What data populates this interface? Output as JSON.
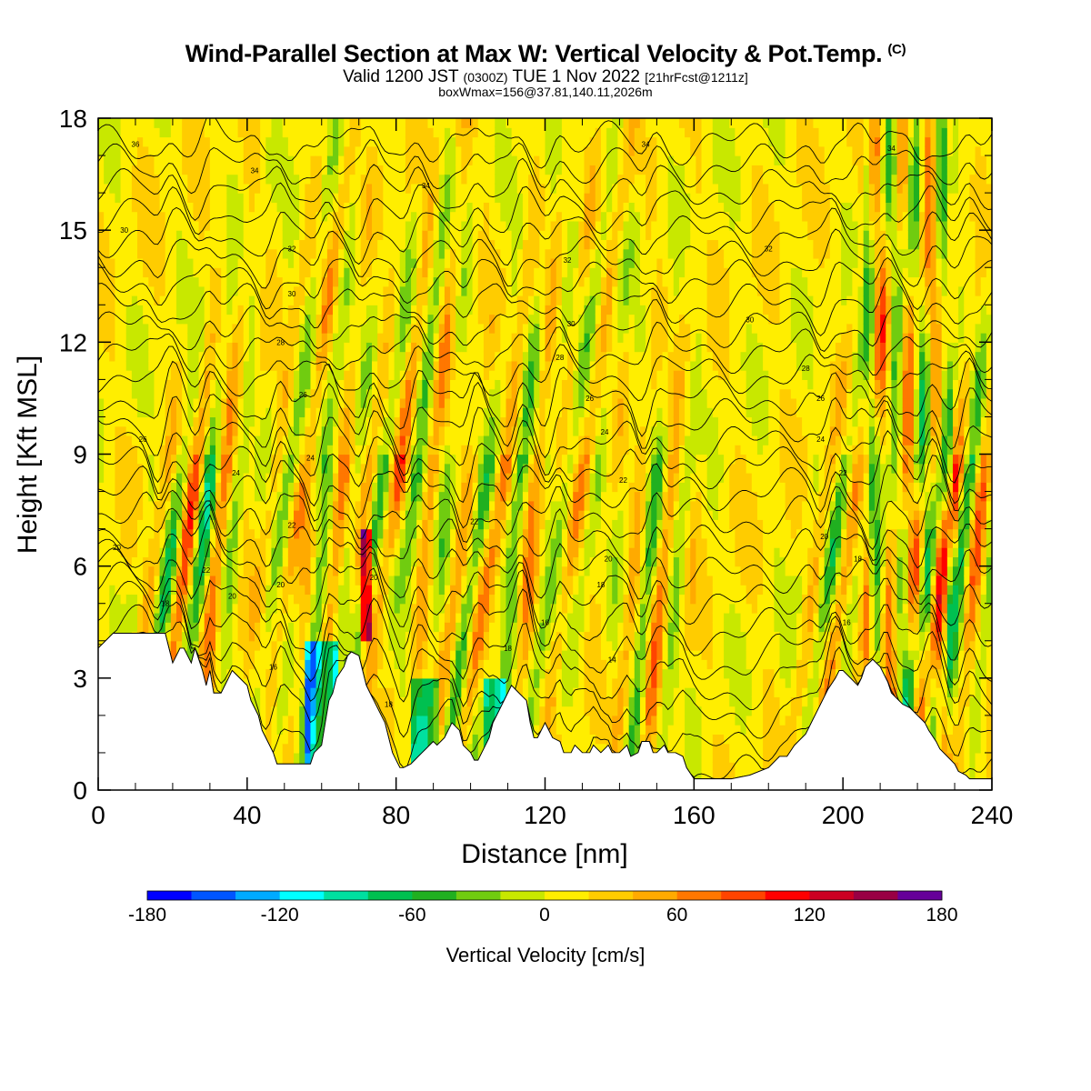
{
  "header": {
    "title": "Wind-Parallel Section at Max W: Vertical Velocity & Pot.Temp.",
    "copyright": "(C)",
    "subtitle_a": "Valid 1200 JST",
    "subtitle_b": "(0300Z)",
    "subtitle_c": "TUE 1 Nov 2022",
    "subtitle_d": "[21hrFcst@1211z]",
    "info": "boxWmax=156@37.81,140.11,2026m"
  },
  "chart_data": {
    "type": "heatmap",
    "xlabel": "Distance [nm]",
    "ylabel": "Height [Kft MSL]",
    "xlim": [
      0,
      240
    ],
    "ylim": [
      0,
      18
    ],
    "x_ticks": [
      0,
      40,
      80,
      120,
      160,
      200,
      240
    ],
    "y_ticks": [
      0,
      3,
      6,
      9,
      12,
      15,
      18
    ],
    "colorbar": {
      "label": "Vertical Velocity [cm/s]",
      "range": [
        -180,
        180
      ],
      "ticks": [
        -180,
        -120,
        -60,
        0,
        60,
        120,
        180
      ],
      "colors": [
        "#0000ff",
        "#0055ff",
        "#00aaff",
        "#00ffff",
        "#00e0a0",
        "#00c050",
        "#20b020",
        "#70cc10",
        "#c8e800",
        "#ffee00",
        "#ffcc00",
        "#ffaa00",
        "#ff7700",
        "#ff4400",
        "#ff0000",
        "#cc0022",
        "#990044",
        "#660099"
      ]
    },
    "terrain_profile": {
      "x": [
        0,
        2,
        4,
        8,
        10,
        18,
        19,
        20,
        22,
        23,
        25,
        26,
        28,
        29,
        30,
        31,
        33,
        35,
        36,
        38,
        40,
        41,
        43,
        44,
        46,
        47,
        48,
        50,
        52,
        53,
        55,
        57,
        58,
        60,
        61,
        62,
        63,
        64,
        66,
        67,
        68,
        70,
        71,
        72,
        73,
        74,
        75,
        77,
        78,
        79,
        80,
        81,
        82,
        84,
        85,
        86,
        87,
        88,
        90,
        91,
        93,
        94,
        95,
        97,
        98,
        100,
        101,
        102,
        103,
        105,
        106,
        107,
        108,
        110,
        111,
        113,
        115,
        116,
        117,
        118,
        120,
        121,
        122,
        124,
        125,
        127,
        128,
        130,
        132,
        133,
        135,
        137,
        138,
        140,
        142,
        143,
        145,
        146,
        148,
        149,
        150,
        152,
        153,
        155,
        157,
        158,
        160,
        162,
        165,
        167,
        170,
        175,
        180,
        183,
        185,
        187,
        190,
        192,
        194,
        196,
        198,
        199,
        200,
        202,
        204,
        205,
        206,
        208,
        210,
        212,
        213,
        215,
        216,
        218,
        220,
        222,
        223,
        225,
        226,
        228,
        230,
        231,
        233,
        234,
        236,
        238,
        240
      ],
      "h": [
        3.8,
        4.0,
        4.2,
        4.2,
        4.2,
        4.2,
        3.8,
        3.4,
        3.8,
        3.8,
        3.4,
        3.8,
        3.2,
        2.8,
        3.2,
        2.6,
        2.6,
        3.0,
        3.2,
        3.0,
        2.8,
        2.4,
        2.0,
        1.6,
        1.2,
        1.0,
        0.7,
        0.7,
        0.7,
        0.7,
        0.7,
        0.7,
        1.0,
        1.2,
        1.8,
        2.4,
        2.6,
        3.0,
        3.3,
        3.6,
        3.7,
        3.6,
        3.2,
        2.8,
        2.6,
        2.4,
        2.2,
        1.8,
        1.4,
        1.0,
        0.8,
        0.6,
        0.6,
        0.7,
        0.8,
        0.9,
        1.0,
        1.1,
        1.3,
        1.2,
        1.4,
        1.6,
        1.8,
        1.6,
        1.2,
        1.0,
        0.8,
        0.8,
        1.0,
        1.4,
        1.8,
        2.0,
        2.2,
        2.6,
        2.8,
        2.6,
        2.4,
        1.8,
        1.4,
        1.4,
        1.8,
        1.6,
        1.4,
        1.3,
        1.0,
        1.0,
        1.2,
        1.0,
        1.0,
        1.2,
        1.0,
        1.2,
        1.0,
        1.0,
        1.2,
        0.9,
        1.0,
        1.3,
        1.3,
        1.0,
        1.0,
        1.2,
        1.0,
        1.0,
        0.9,
        0.6,
        0.3,
        0.3,
        0.3,
        0.3,
        0.3,
        0.4,
        0.6,
        0.9,
        0.9,
        1.2,
        1.5,
        1.9,
        2.3,
        2.7,
        3.0,
        3.2,
        3.2,
        3.0,
        2.8,
        3.0,
        3.3,
        3.5,
        3.3,
        2.9,
        2.6,
        2.4,
        2.3,
        2.2,
        2.0,
        1.8,
        1.6,
        1.3,
        1.1,
        0.9,
        0.7,
        0.5,
        0.4,
        0.3,
        0.3,
        0.3,
        0.3
      ]
    },
    "theta_contour_labels": [
      {
        "x": 10,
        "h": 17.3,
        "text": "36"
      },
      {
        "x": 42,
        "h": 16.6,
        "text": "34"
      },
      {
        "x": 88,
        "h": 16.2,
        "text": "34"
      },
      {
        "x": 147,
        "h": 17.3,
        "text": "34"
      },
      {
        "x": 213,
        "h": 17.2,
        "text": "34"
      },
      {
        "x": 7,
        "h": 15.0,
        "text": "30"
      },
      {
        "x": 52,
        "h": 14.5,
        "text": "32"
      },
      {
        "x": 126,
        "h": 14.2,
        "text": "32"
      },
      {
        "x": 180,
        "h": 14.5,
        "text": "32"
      },
      {
        "x": 52,
        "h": 13.3,
        "text": "30"
      },
      {
        "x": 127,
        "h": 12.5,
        "text": "30"
      },
      {
        "x": 175,
        "h": 12.6,
        "text": "30"
      },
      {
        "x": 49,
        "h": 12.0,
        "text": "28"
      },
      {
        "x": 124,
        "h": 11.6,
        "text": "28"
      },
      {
        "x": 190,
        "h": 11.3,
        "text": "28"
      },
      {
        "x": 55,
        "h": 10.6,
        "text": "26"
      },
      {
        "x": 132,
        "h": 10.5,
        "text": "26"
      },
      {
        "x": 194,
        "h": 10.5,
        "text": "26"
      },
      {
        "x": 12,
        "h": 9.4,
        "text": "26"
      },
      {
        "x": 136,
        "h": 9.6,
        "text": "24"
      },
      {
        "x": 194,
        "h": 9.4,
        "text": "24"
      },
      {
        "x": 57,
        "h": 8.9,
        "text": "24"
      },
      {
        "x": 37,
        "h": 8.5,
        "text": "24"
      },
      {
        "x": 141,
        "h": 8.3,
        "text": "22"
      },
      {
        "x": 200,
        "h": 8.5,
        "text": "22"
      },
      {
        "x": 101,
        "h": 7.2,
        "text": "22"
      },
      {
        "x": 52,
        "h": 7.1,
        "text": "22"
      },
      {
        "x": 5,
        "h": 6.5,
        "text": "20"
      },
      {
        "x": 195,
        "h": 6.8,
        "text": "20"
      },
      {
        "x": 137,
        "h": 6.2,
        "text": "20"
      },
      {
        "x": 29,
        "h": 5.9,
        "text": "22"
      },
      {
        "x": 74,
        "h": 5.7,
        "text": "20"
      },
      {
        "x": 49,
        "h": 5.5,
        "text": "20"
      },
      {
        "x": 36,
        "h": 5.2,
        "text": "20"
      },
      {
        "x": 204,
        "h": 6.2,
        "text": "18"
      },
      {
        "x": 135,
        "h": 5.5,
        "text": "18"
      },
      {
        "x": 18,
        "h": 5.0,
        "text": "18"
      },
      {
        "x": 120,
        "h": 4.5,
        "text": "16"
      },
      {
        "x": 201,
        "h": 4.5,
        "text": "16"
      },
      {
        "x": 110,
        "h": 3.8,
        "text": "18"
      },
      {
        "x": 138,
        "h": 3.5,
        "text": "14"
      },
      {
        "x": 47,
        "h": 3.3,
        "text": "16"
      },
      {
        "x": 78,
        "h": 2.3,
        "text": "18"
      }
    ]
  }
}
